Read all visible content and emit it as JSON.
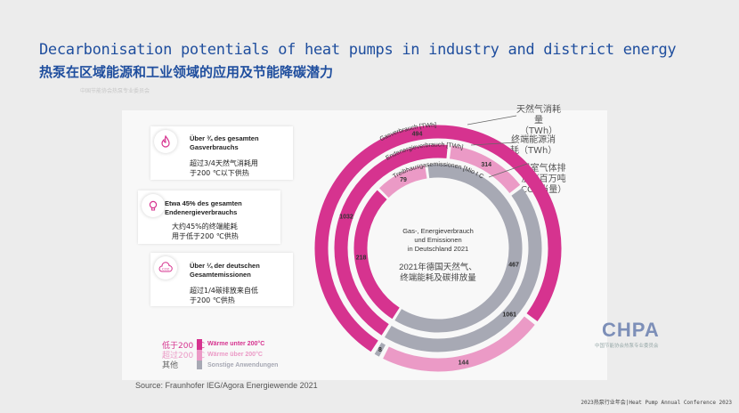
{
  "slide": {
    "title_en": "Decarbonisation potentials of heat pumps in industry and district energy",
    "title_cn": "热泵在区域能源和工业领域的应用及节能降碳潜力",
    "watermark": "中国节能协会热泵专业委员会",
    "source": "Source: Fraunhofer IEG/Agora Energiewende 2021",
    "conference": "2023热泵行业年会|Heat Pump Annual Conference 2023",
    "logo": "CHPA",
    "logo_sub": "中国节能协会热泵专业委员会"
  },
  "cards": [
    {
      "de1": "Über ¾ des gesamten",
      "de2": "Gasverbrauchs",
      "cn1": "超过3/4天然气消耗用",
      "cn2": "于200 ℃以下供热",
      "icon": "flame-icon"
    },
    {
      "de1": "Etwa 45% des gesamten",
      "de2": "Endenergieverbrauchs",
      "cn1": "大约45%的终端能耗",
      "cn2": "用于低于200 ℃供热",
      "icon": "lightbulb-icon"
    },
    {
      "de1": "Über ¼ der deutschen",
      "de2": "Gesamtemissionen",
      "cn1": "超过1/4碳排放来自低",
      "cn2": "于200 ℃供热",
      "icon": "co2-icon"
    }
  ],
  "legend": {
    "below_cn": "低于200 ℃",
    "below_de": "Wärme unter 200°C",
    "above_cn": "超过200 ℃",
    "above_de": "Wärme über 200°C",
    "other_cn": "其他",
    "other_de": "Sonstige Anwendungen"
  },
  "right_labels": {
    "gas": [
      "天然气消耗",
      "量",
      "（TWh）"
    ],
    "final": [
      "终端能源消",
      "耗（TWh）"
    ],
    "ghg": [
      "温室气体排",
      "放（百万吨",
      "CO2当量）"
    ]
  },
  "chart_data": {
    "type": "pie",
    "title": "Gas-, Energieverbrauch und Emissionen in Deutschland 2021",
    "title_lines": [
      "Gas-, Energieverbrauch",
      "und Emissionen",
      "in Deutschland 2021"
    ],
    "subtitle_lines": [
      "2021年德国天然气、",
      "终端能耗及碳排放量"
    ],
    "rings": [
      {
        "name": "Gasverbrauch [TWh]",
        "segments": [
          {
            "category": "Wärme unter 200°C",
            "value": 494
          },
          {
            "category": "Wärme über 200°C",
            "value": 144
          },
          {
            "category": "Sonstige Anwendungen",
            "value": 8
          }
        ]
      },
      {
        "name": "Endenergieverbrauch [TWh]",
        "segments": [
          {
            "category": "Wärme unter 200°C",
            "value": 1032
          },
          {
            "category": "Wärme über 200°C",
            "value": 314
          },
          {
            "category": "Sonstige Anwendungen",
            "value": 1061
          }
        ]
      },
      {
        "name": "Treibhausgasemissionen [Mio t CO₂-Äq]",
        "segments": [
          {
            "category": "Wärme unter 200°C",
            "value": 218
          },
          {
            "category": "Wärme über 200°C",
            "value": 79
          },
          {
            "category": "Sonstige Anwendungen",
            "value": 467
          }
        ]
      }
    ],
    "colors": {
      "Wärme unter 200°C": "#d6338f",
      "Wärme über 200°C": "#eb9ac6",
      "Sonstige Anwendungen": "#a7a9b4"
    }
  }
}
